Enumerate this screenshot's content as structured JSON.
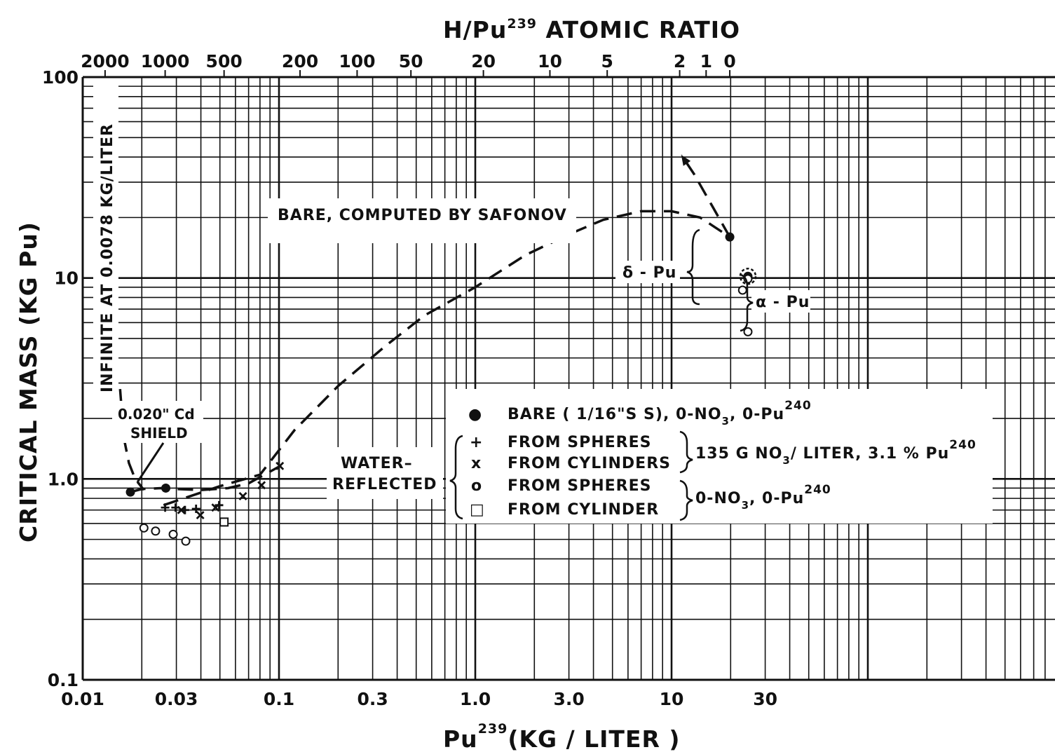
{
  "chart_data": {
    "type": "scatter",
    "title": "H/Pu239 ATOMIC RATIO",
    "top_axis": {
      "label_main": "H/Pu",
      "label_sup": "239",
      "label_rest": " ATOMIC RATIO",
      "ticks": [
        {
          "label": "2000",
          "x": 0.013
        },
        {
          "label": "1000",
          "x": 0.0263
        },
        {
          "label": "500",
          "x": 0.0525
        },
        {
          "label": "200",
          "x": 0.128
        },
        {
          "label": "100",
          "x": 0.25
        },
        {
          "label": "50",
          "x": 0.47
        },
        {
          "label": "20",
          "x": 1.1
        },
        {
          "label": "10",
          "x": 2.4
        },
        {
          "label": "5",
          "x": 4.7
        },
        {
          "label": "2",
          "x": 11
        },
        {
          "label": "1",
          "x": 15
        },
        {
          "label": "0",
          "x": 19.8
        }
      ]
    },
    "x_axis": {
      "label_main": "Pu",
      "label_sup": "239",
      "label_rest": "(KG / LITER )",
      "scale": "log",
      "range": [
        0.01,
        1000
      ],
      "ticks": [
        "0.01",
        "0.03",
        "0.1",
        "0.3",
        "1.0",
        "3.0",
        "10",
        "30"
      ]
    },
    "y_axis": {
      "label": "CRITICAL MASS (KG Pu)",
      "scale": "log",
      "range": [
        0.1,
        100
      ],
      "ticks": [
        "0.1",
        "1.0",
        "10",
        "100"
      ]
    },
    "series": [
      {
        "name": "BARE ( 1/16\"SS), 0-NO3, 0-Pu240",
        "marker": "filled-circle",
        "points": [
          [
            0.0175,
            0.86
          ],
          [
            0.0265,
            0.9
          ],
          [
            19.8,
            16.0
          ],
          [
            24.5,
            10.2
          ]
        ]
      },
      {
        "name": "FROM SPHERES (135G NO3/LITER, 3.1 % Pu240)",
        "marker": "plus",
        "points": [
          [
            0.0263,
            0.72
          ],
          [
            0.0297,
            0.72
          ],
          [
            0.0332,
            0.7
          ],
          [
            0.0378,
            0.71
          ],
          [
            0.0495,
            0.74
          ]
        ]
      },
      {
        "name": "FROM CYLINDERS (135G NO3/LITER, 3.1 % Pu240)",
        "marker": "x",
        "points": [
          [
            0.0318,
            0.7
          ],
          [
            0.0397,
            0.66
          ],
          [
            0.0475,
            0.72
          ],
          [
            0.0655,
            0.82
          ],
          [
            0.0815,
            0.93
          ],
          [
            0.101,
            1.16
          ]
        ]
      },
      {
        "name": "FROM SPHERES (0-NO3, 0-Pu240)",
        "marker": "open-circle",
        "points": [
          [
            0.0205,
            0.57
          ],
          [
            0.0235,
            0.55
          ],
          [
            0.0289,
            0.53
          ],
          [
            0.0335,
            0.49
          ],
          [
            24.5,
            9.9
          ],
          [
            24.5,
            5.4
          ],
          [
            23.0,
            8.7
          ]
        ]
      },
      {
        "name": "FROM CYLINDER (0-NO3, 0-Pu240)",
        "marker": "open-square",
        "points": [
          [
            0.0525,
            0.61
          ]
        ]
      }
    ],
    "curves": [
      {
        "name": "BARE, COMPUTED BY SAFONOV",
        "style": "dashed",
        "points": [
          [
            0.0258,
            0.74
          ],
          [
            0.05,
            0.92
          ],
          [
            0.08,
            1.05
          ],
          [
            0.12,
            1.75
          ],
          [
            0.2,
            2.9
          ],
          [
            0.35,
            4.6
          ],
          [
            0.55,
            6.5
          ],
          [
            1.0,
            9.0
          ],
          [
            1.8,
            13.0
          ],
          [
            3.0,
            16.5
          ],
          [
            4.5,
            19.5
          ],
          [
            7.0,
            21.5
          ],
          [
            10.0,
            21.5
          ],
          [
            14.0,
            20.0
          ],
          [
            19.8,
            16.0
          ]
        ]
      },
      {
        "name": "WATER-REFLECTED",
        "style": "dashed",
        "points": [
          [
            0.0175,
            0.86
          ],
          [
            0.02,
            0.89
          ],
          [
            0.025,
            0.9
          ],
          [
            0.03,
            0.89
          ],
          [
            0.04,
            0.88
          ],
          [
            0.055,
            0.9
          ],
          [
            0.07,
            0.95
          ],
          [
            0.1,
            1.15
          ]
        ]
      },
      {
        "name": "0.020\" Cd SHIELD",
        "style": "dashed",
        "points": [
          [
            0.0155,
            2.8
          ],
          [
            0.0162,
            1.6
          ],
          [
            0.0172,
            1.2
          ],
          [
            0.0185,
            1.0
          ],
          [
            0.0205,
            0.88
          ]
        ]
      },
      {
        "name": "delta-Pu arrow",
        "style": "dashed-arrow",
        "points": [
          [
            19.8,
            16.0
          ],
          [
            13.0,
            33.0
          ],
          [
            11.2,
            41.0
          ]
        ]
      }
    ],
    "annotations": {
      "infinite": "INFINITE AT 0.0078 KG/LITER",
      "cd_shield_l1": "0.020\" Cd",
      "cd_shield_l2": "SHIELD",
      "bare_safonov": "BARE, COMPUTED BY SAFONOV",
      "water_l1": "WATER–",
      "water_l2": "REFLECTED",
      "delta_pu": "δ - Pu",
      "alpha_pu": "α - Pu"
    },
    "legend": {
      "placement": "center-right",
      "rows": [
        {
          "symbol": "●",
          "text": "BARE ( 1/16\"S S), 0-NO",
          "sub": "3",
          "rest": ", 0-Pu",
          "sup": "240"
        },
        {
          "symbol": "+",
          "text": "FROM SPHERES"
        },
        {
          "symbol": "x",
          "text": "FROM CYLINDERS"
        },
        {
          "symbol": "o",
          "text": "FROM SPHERES"
        },
        {
          "symbol": "□",
          "text": "FROM CYLINDER"
        }
      ],
      "group1": {
        "text": "135 G  NO",
        "sub": "3",
        "rest": "/ LITER, 3.1 % Pu",
        "sup": "240"
      },
      "group2": {
        "text": "0-NO",
        "sub": "3",
        "rest": ", 0-Pu",
        "sup": "240"
      }
    },
    "grid": true
  }
}
